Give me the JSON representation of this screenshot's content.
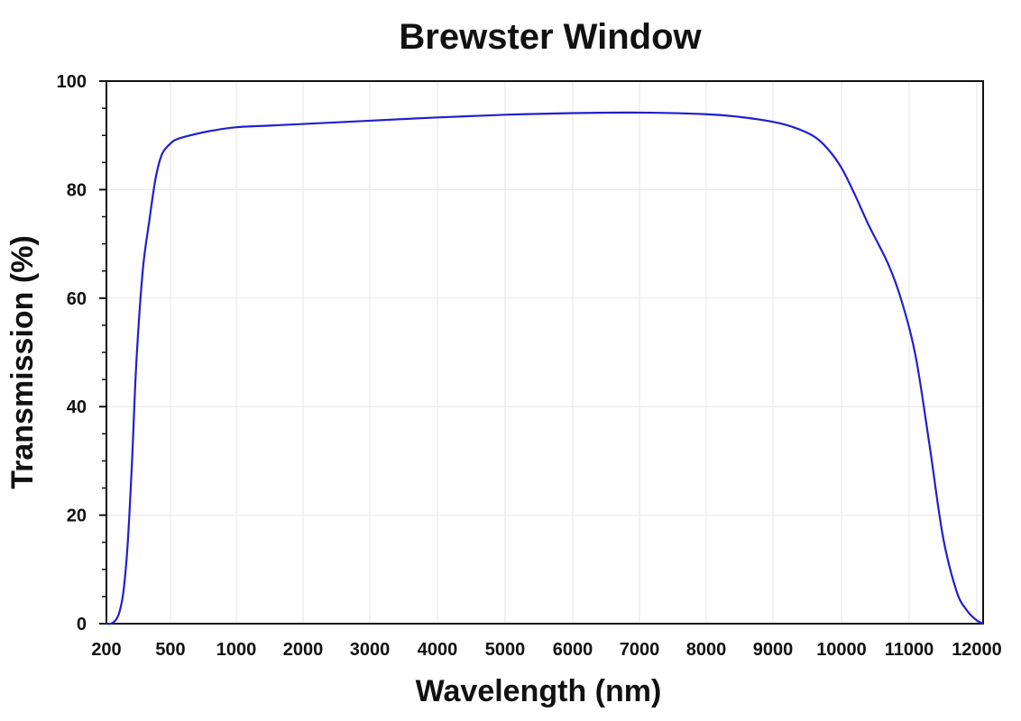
{
  "chart_data": {
    "type": "line",
    "title": "Brewster Window",
    "xlabel": "Wavelength (nm)",
    "ylabel": "Transmission (%)",
    "x_ticks": [
      "200",
      "500",
      "1000",
      "2000",
      "3000",
      "4000",
      "5000",
      "6000",
      "7000",
      "8000",
      "9000",
      "10000",
      "11000",
      "12000"
    ],
    "y_ticks": [
      "0",
      "20",
      "40",
      "60",
      "80",
      "100"
    ],
    "y_tick_values": [
      0,
      20,
      40,
      60,
      80,
      100
    ],
    "ylim": [
      0,
      100
    ],
    "xlim": [
      200,
      12100
    ],
    "grid": true,
    "series": [
      {
        "color": "#2020d0",
        "points": [
          [
            200,
            0
          ],
          [
            220,
            0
          ],
          [
            240,
            0.5
          ],
          [
            260,
            2
          ],
          [
            280,
            6
          ],
          [
            300,
            15
          ],
          [
            320,
            30
          ],
          [
            340,
            48
          ],
          [
            370,
            65
          ],
          [
            400,
            74
          ],
          [
            430,
            82
          ],
          [
            460,
            86.5
          ],
          [
            500,
            88.5
          ],
          [
            550,
            89.3
          ],
          [
            650,
            90
          ],
          [
            800,
            90.8
          ],
          [
            1000,
            91.5
          ],
          [
            1500,
            91.8
          ],
          [
            2000,
            92.1
          ],
          [
            3000,
            92.7
          ],
          [
            4000,
            93.3
          ],
          [
            5000,
            93.8
          ],
          [
            6000,
            94.1
          ],
          [
            7000,
            94.2
          ],
          [
            8000,
            93.9
          ],
          [
            8500,
            93.4
          ],
          [
            9000,
            92.5
          ],
          [
            9300,
            91.5
          ],
          [
            9600,
            89.8
          ],
          [
            9800,
            87.5
          ],
          [
            10000,
            84
          ],
          [
            10200,
            79
          ],
          [
            10400,
            73.5
          ],
          [
            10700,
            66
          ],
          [
            10900,
            59
          ],
          [
            11100,
            49
          ],
          [
            11300,
            33
          ],
          [
            11500,
            16
          ],
          [
            11700,
            6
          ],
          [
            11850,
            2.5
          ],
          [
            12000,
            0.6
          ],
          [
            12100,
            0
          ]
        ]
      }
    ]
  }
}
